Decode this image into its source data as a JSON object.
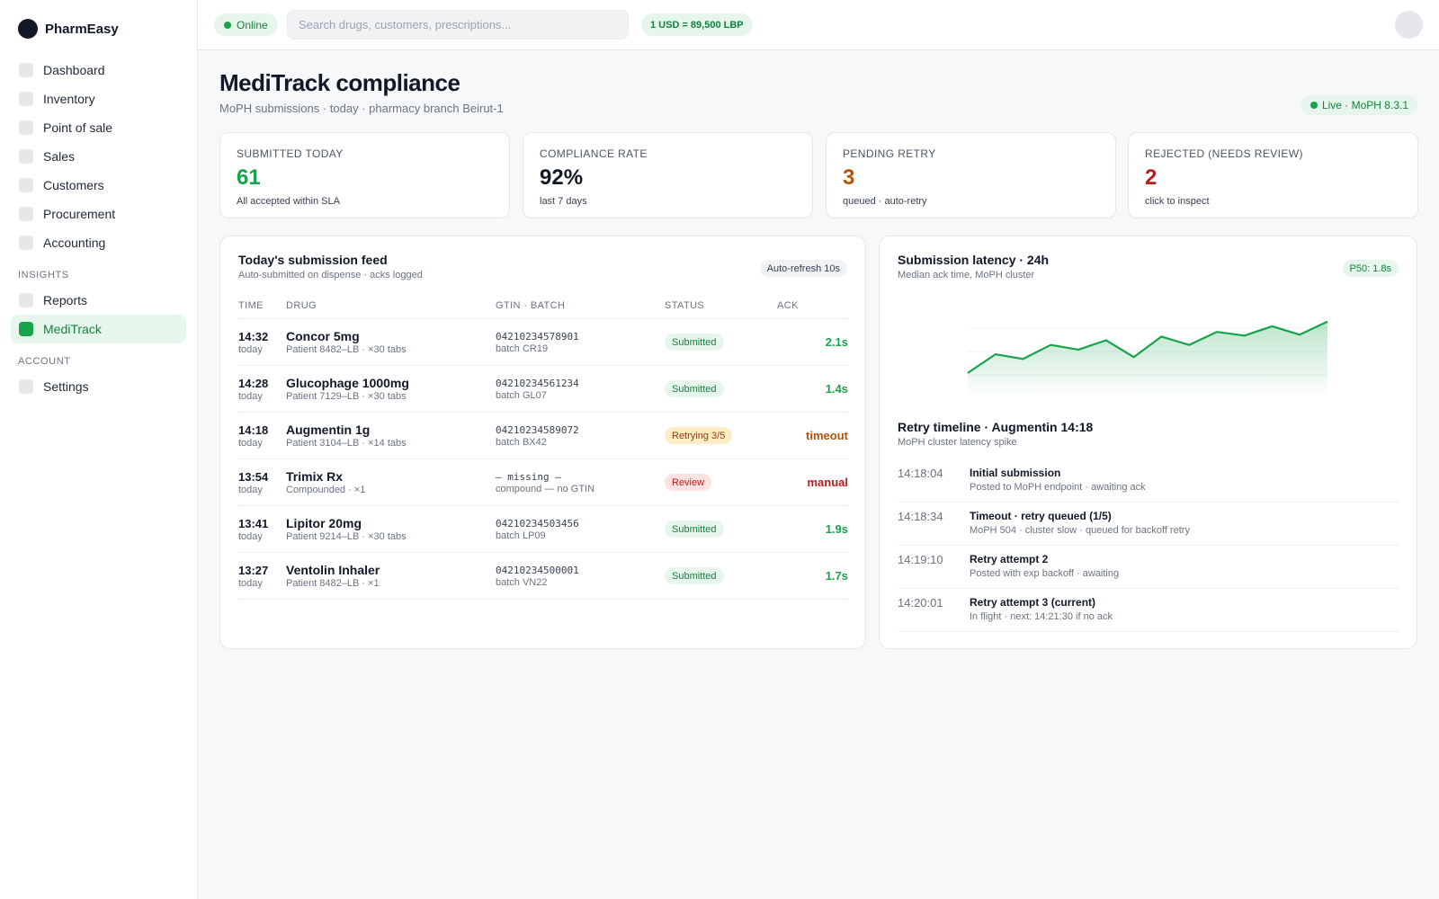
{
  "brand": {
    "name": "PharmEasy"
  },
  "sidebar": {
    "items": [
      {
        "label": "Dashboard"
      },
      {
        "label": "Inventory"
      },
      {
        "label": "Point of sale"
      },
      {
        "label": "Sales"
      },
      {
        "label": "Customers"
      },
      {
        "label": "Procurement"
      },
      {
        "label": "Accounting"
      }
    ],
    "insights_label": "INSIGHTS",
    "insights": [
      {
        "label": "Reports"
      },
      {
        "label": "MediTrack",
        "active": true
      }
    ],
    "account_label": "ACCOUNT",
    "account": [
      {
        "label": "Settings"
      }
    ]
  },
  "topbar": {
    "status": "Online",
    "search_placeholder": "Search drugs, customers, prescriptions...",
    "fx_rate": "1 USD = 89,500 LBP"
  },
  "page": {
    "title": "MediTrack compliance",
    "subtitle": "MoPH submissions · today · pharmacy branch Beirut-1",
    "live_badge": "Live · MoPH 8.3.1"
  },
  "stats": [
    {
      "label": "SUBMITTED TODAY",
      "value": "61",
      "note": "All accepted within SLA",
      "color": "#16a34a"
    },
    {
      "label": "COMPLIANCE RATE",
      "value": "92%",
      "note": "last 7 days",
      "color": "#111827"
    },
    {
      "label": "PENDING RETRY",
      "value": "3",
      "note": "queued · auto-retry",
      "color": "#b45309"
    },
    {
      "label": "REJECTED (NEEDS REVIEW)",
      "value": "2",
      "note": "click to inspect",
      "color": "#b91c1c"
    }
  ],
  "feed": {
    "title": "Today's submission feed",
    "subtitle": "Auto-submitted on dispense · acks logged",
    "refresh": "Auto-refresh 10s",
    "columns": {
      "time": "TIME",
      "drug": "DRUG",
      "gtin": "GTIN · BATCH",
      "status": "STATUS",
      "ack": "ACK"
    },
    "rows": [
      {
        "time": "14:32",
        "day": "today",
        "drug": "Concor 5mg",
        "detail": "Patient 8482–LB · ×30 tabs",
        "gtin": "04210234578901",
        "batch": "batch CR19",
        "status": "Submitted",
        "ack": "2.1s"
      },
      {
        "time": "14:28",
        "day": "today",
        "drug": "Glucophage 1000mg",
        "detail": "Patient 7129–LB · ×30 tabs",
        "gtin": "04210234561234",
        "batch": "batch GL07",
        "status": "Submitted",
        "ack": "1.4s"
      },
      {
        "time": "14:18",
        "day": "today",
        "drug": "Augmentin 1g",
        "detail": "Patient 3104–LB · ×14 tabs",
        "gtin": "04210234589072",
        "batch": "batch BX42",
        "status": "Retrying 3/5",
        "ack": "timeout"
      },
      {
        "time": "13:54",
        "day": "today",
        "drug": "Trimix Rx",
        "detail": "Compounded · ×1",
        "gtin": "— missing —",
        "batch": "compound — no GTIN",
        "status": "Review",
        "ack": "manual"
      },
      {
        "time": "13:41",
        "day": "today",
        "drug": "Lipitor 20mg",
        "detail": "Patient 9214–LB · ×30 tabs",
        "gtin": "04210234503456",
        "batch": "batch LP09",
        "status": "Submitted",
        "ack": "1.9s"
      },
      {
        "time": "13:27",
        "day": "today",
        "drug": "Ventolin Inhaler",
        "detail": "Patient 8482–LB · ×1",
        "gtin": "04210234500001",
        "batch": "batch VN22",
        "status": "Submitted",
        "ack": "1.7s"
      }
    ]
  },
  "latency": {
    "title": "Submission latency · 24h",
    "subtitle": "Median ack time, MoPH cluster",
    "p50": "P50: 1.8s",
    "line_color": "#16a34a",
    "points": [
      0.27,
      0.47,
      0.42,
      0.57,
      0.52,
      0.62,
      0.44,
      0.66,
      0.57,
      0.71,
      0.67,
      0.77,
      0.68,
      0.82
    ]
  },
  "retry": {
    "title": "Retry timeline · Augmentin 14:18",
    "subtitle": "MoPH cluster latency spike",
    "events": [
      {
        "time": "14:18:04",
        "title": "Initial submission",
        "desc": "Posted to MoPH endpoint · awaiting ack"
      },
      {
        "time": "14:18:34",
        "title": "Timeout · retry queued (1/5)",
        "desc": "MoPH 504 · cluster slow · queued for backoff retry"
      },
      {
        "time": "14:19:10",
        "title": "Retry attempt 2",
        "desc": "Posted with exp backoff · awaiting"
      },
      {
        "time": "14:20:01",
        "title": "Retry attempt 3 (current)",
        "desc": "In flight · next: 14:21:30 if no ack"
      }
    ]
  }
}
